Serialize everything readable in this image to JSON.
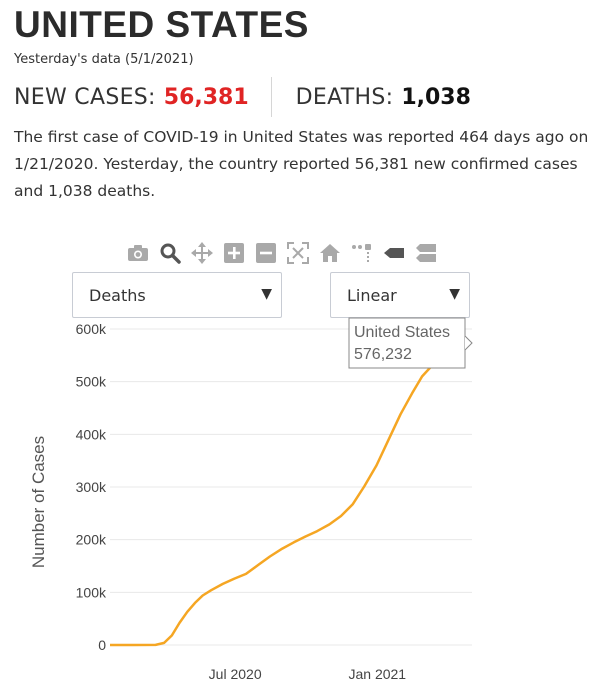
{
  "header": {
    "title": "UNITED STATES",
    "subtitle": "Yesterday's data (5/1/2021)"
  },
  "stats": {
    "new_cases_label": "NEW CASES:",
    "new_cases_value": "56,381",
    "deaths_label": "DEATHS:",
    "deaths_value": "1,038"
  },
  "summary": "The first case of COVID-19 in United States was reported 464 days ago on 1/21/2020. Yesterday, the country reported 56,381 new confirmed cases and 1,038 deaths.",
  "modebar": {
    "icons": [
      "camera-icon",
      "zoom-icon",
      "pan-icon",
      "zoom-in-icon",
      "zoom-out-icon",
      "autoscale-icon",
      "reset-axes-icon",
      "spike-lines-icon",
      "hover-closest-icon",
      "hover-compare-icon"
    ]
  },
  "controls": {
    "metric_select": "Deaths",
    "scale_select": "Linear"
  },
  "colors": {
    "line": "#f5a623",
    "new_cases": "#e02424",
    "grid": "#e8e8e8"
  },
  "chart_data": {
    "type": "line",
    "ylabel": "Number of Cases",
    "ylim": [
      0,
      600000
    ],
    "y_ticks": [
      0,
      100000,
      200000,
      300000,
      400000,
      500000,
      600000
    ],
    "y_tick_labels": [
      "0",
      "100k",
      "200k",
      "300k",
      "400k",
      "500k",
      "600k"
    ],
    "x_ticks": [
      "2020-07-01",
      "2021-01-01"
    ],
    "x_tick_labels": [
      "Jul 2020",
      "Jan 2021"
    ],
    "grid": true,
    "series": [
      {
        "name": "United States",
        "color": "#f5a623",
        "points": [
          [
            "2020-01-21",
            0
          ],
          [
            "2020-02-20",
            0
          ],
          [
            "2020-03-20",
            200
          ],
          [
            "2020-03-31",
            4000
          ],
          [
            "2020-04-10",
            18000
          ],
          [
            "2020-04-20",
            42000
          ],
          [
            "2020-04-30",
            63000
          ],
          [
            "2020-05-10",
            80000
          ],
          [
            "2020-05-20",
            94000
          ],
          [
            "2020-05-31",
            104000
          ],
          [
            "2020-06-15",
            116000
          ],
          [
            "2020-06-30",
            126000
          ],
          [
            "2020-07-15",
            135000
          ],
          [
            "2020-07-31",
            152000
          ],
          [
            "2020-08-15",
            168000
          ],
          [
            "2020-08-31",
            183000
          ],
          [
            "2020-09-15",
            195000
          ],
          [
            "2020-09-30",
            206000
          ],
          [
            "2020-10-15",
            216000
          ],
          [
            "2020-10-31",
            229000
          ],
          [
            "2020-11-15",
            245000
          ],
          [
            "2020-11-30",
            267000
          ],
          [
            "2020-12-15",
            301000
          ],
          [
            "2020-12-31",
            341000
          ],
          [
            "2021-01-15",
            388000
          ],
          [
            "2021-01-31",
            438000
          ],
          [
            "2021-02-15",
            478000
          ],
          [
            "2021-02-28",
            510000
          ],
          [
            "2021-03-15",
            534000
          ],
          [
            "2021-03-31",
            552000
          ],
          [
            "2021-04-15",
            566000
          ],
          [
            "2021-05-01",
            576232
          ]
        ]
      }
    ],
    "tooltip": {
      "name": "United States",
      "value": "576,232"
    }
  }
}
